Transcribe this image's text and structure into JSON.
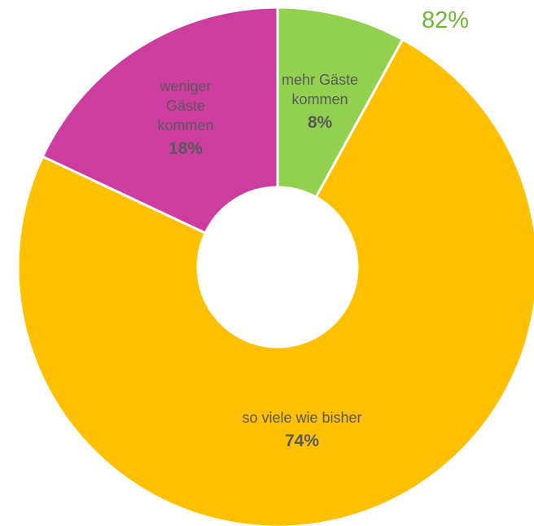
{
  "chart_data": {
    "type": "pie",
    "variant": "donut",
    "slices": [
      {
        "label_lines": [
          "mehr Gäste",
          "kommen"
        ],
        "value": 8,
        "value_label": "8%",
        "color": "#92d050"
      },
      {
        "label_lines": [
          "so viele wie bisher"
        ],
        "value": 74,
        "value_label": "74%",
        "color": "#ffc000"
      },
      {
        "label_lines": [
          "weniger",
          "Gäste",
          "kommen"
        ],
        "value": 18,
        "value_label": "18%",
        "color": "#cc3d9f"
      }
    ],
    "annotation": {
      "text": "82%",
      "color": "#70b536"
    },
    "legend": "none"
  }
}
